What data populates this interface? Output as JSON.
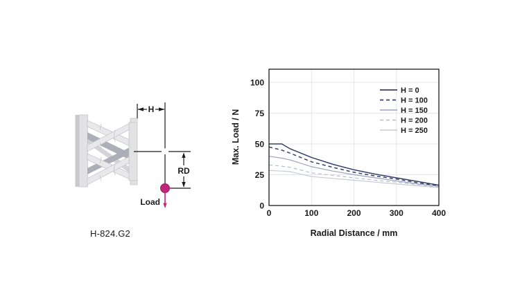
{
  "page": {
    "background": "#ffffff"
  },
  "diagram": {
    "model_label": "H-824.G2",
    "dim_h_label": "H",
    "dim_rd_label": "RD",
    "load_label": "Load",
    "load_color": "#c02679",
    "plate_color": "#e2e2e5",
    "plate_edge_color": "#c9c9ce",
    "strut_color": "#e9e9ec",
    "strut_outline_color": "#c6c6cb",
    "strut_shadow_color": "#aeaeb8",
    "line_color": "#1a1a1a"
  },
  "chart_data": {
    "type": "line",
    "title": "",
    "xlabel": "Radial Distance / mm",
    "ylabel": "Max. Load / N",
    "xlim": [
      0,
      400
    ],
    "ylim": [
      0,
      110.7
    ],
    "xticks": [
      0,
      100,
      200,
      300,
      400
    ],
    "yticks": [
      0,
      25,
      50,
      75,
      100
    ],
    "grid": true,
    "grid_color": "#e6e6ea",
    "axis_color": "#1a1a1a",
    "legend_position": "top-right",
    "x": [
      0,
      30,
      50,
      100,
      150,
      200,
      250,
      300,
      350,
      400
    ],
    "series": [
      {
        "name": "H = 0",
        "color": "#36406a",
        "dash": false,
        "width": 1.5,
        "values": [
          50,
          50,
          46,
          39,
          33.5,
          29,
          25.5,
          22.5,
          19.5,
          16.5
        ]
      },
      {
        "name": "H = 100",
        "color": "#36406a",
        "dash": true,
        "width": 1.5,
        "values": [
          47.5,
          45,
          42.5,
          35.5,
          31,
          27,
          24,
          21.5,
          18.5,
          16
        ]
      },
      {
        "name": "H = 150",
        "color": "#9ba4ba",
        "dash": false,
        "width": 1.2,
        "values": [
          40,
          38.5,
          37,
          31.5,
          28,
          25,
          22.5,
          20,
          17.5,
          15.5
        ]
      },
      {
        "name": "H = 200",
        "color": "#b6bccb",
        "dash": true,
        "width": 1.2,
        "values": [
          33,
          32,
          31,
          26.5,
          24.5,
          22.5,
          20.5,
          19,
          17,
          15
        ]
      },
      {
        "name": "H = 250",
        "color": "#c5c9d5",
        "dash": false,
        "width": 1.2,
        "values": [
          28.5,
          28,
          27.5,
          23.5,
          22,
          20.5,
          19,
          17.5,
          16,
          14.5
        ]
      }
    ]
  }
}
